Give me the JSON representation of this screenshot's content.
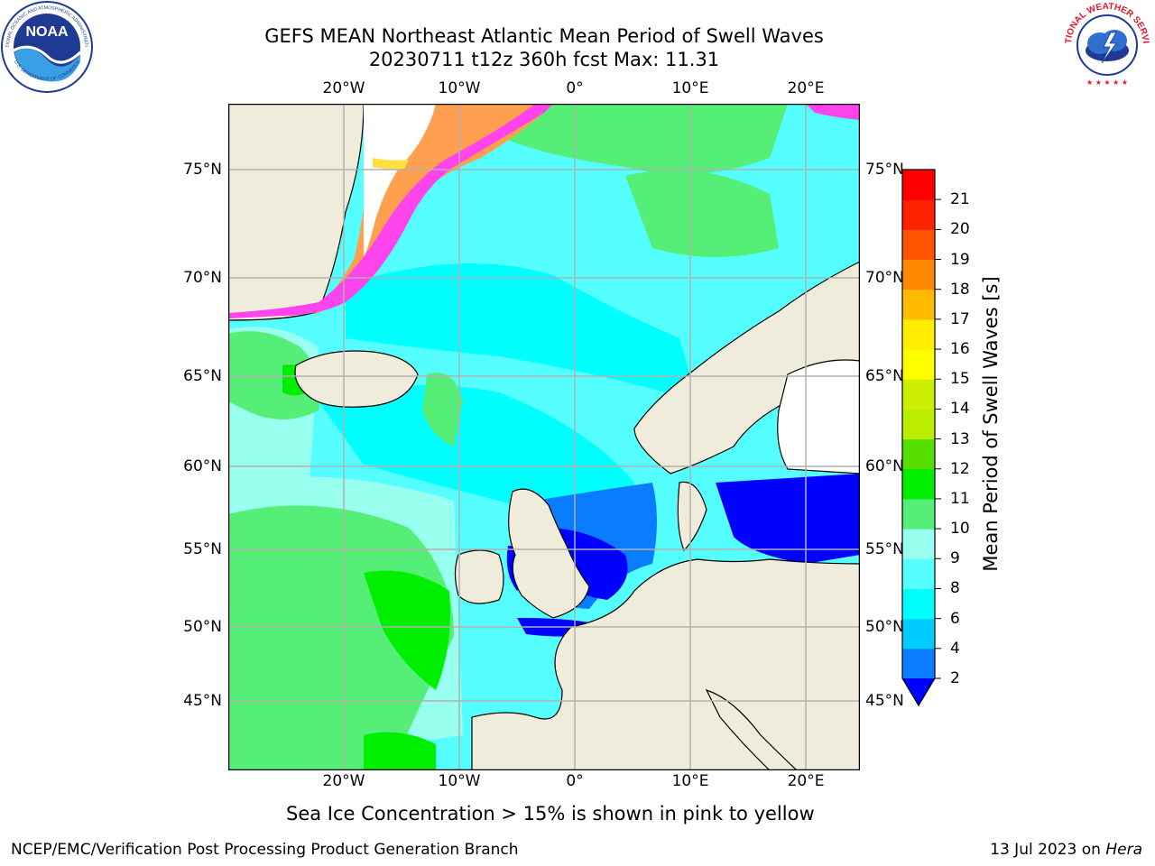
{
  "header": {
    "title_line1": "GEFS MEAN Northeast Atlantic Mean Period of Swell Waves",
    "title_line2": "20230711 t12z 360h fcst   Max: 11.31"
  },
  "logos": {
    "noaa_text": "NOAA",
    "noaa_ring_text": "NATIONAL OCEANIC AND ATMOSPHERIC ADMINISTRATION",
    "noaa_ring_text_bottom": "U.S. DEPARTMENT OF COMMERCE",
    "nws_ring_text": "NATIONAL WEATHER SERVICE"
  },
  "map": {
    "lon_labels": [
      "20°W",
      "10°W",
      "0°",
      "10°E",
      "20°E"
    ],
    "lat_labels": [
      "75°N",
      "70°N",
      "65°N",
      "60°N",
      "55°N",
      "50°N",
      "45°N"
    ],
    "colors": {
      "land": "#efecdc",
      "grid": "#b0b0b0",
      "coast": "#000000",
      "ice_white": "#ffffff",
      "ice_pink": "#ff44ee",
      "ice_orange": "#ffa050",
      "ice_yellow": "#ffe040"
    }
  },
  "colorbar": {
    "label": "Mean Period of Swell Waves [s]",
    "ticks": [
      "2",
      "4",
      "6",
      "8",
      "9",
      "10",
      "11",
      "12",
      "13",
      "14",
      "15",
      "16",
      "17",
      "18",
      "19",
      "20",
      "21"
    ],
    "bins": [
      {
        "from": 2,
        "to": 4,
        "color": "#0a7cff"
      },
      {
        "from": 4,
        "to": 6,
        "color": "#00ccff"
      },
      {
        "from": 6,
        "to": 8,
        "color": "#00ffff"
      },
      {
        "from": 8,
        "to": 9,
        "color": "#55ffff"
      },
      {
        "from": 9,
        "to": 10,
        "color": "#99ffee"
      },
      {
        "from": 10,
        "to": 11,
        "color": "#55ee77"
      },
      {
        "from": 11,
        "to": 12,
        "color": "#00ee00"
      },
      {
        "from": 12,
        "to": 13,
        "color": "#55dd00"
      },
      {
        "from": 13,
        "to": 14,
        "color": "#bbee00"
      },
      {
        "from": 14,
        "to": 15,
        "color": "#ccee00"
      },
      {
        "from": 15,
        "to": 16,
        "color": "#ffff00"
      },
      {
        "from": 16,
        "to": 17,
        "color": "#ffee00"
      },
      {
        "from": 17,
        "to": 18,
        "color": "#ffbb00"
      },
      {
        "from": 18,
        "to": 19,
        "color": "#ff8800"
      },
      {
        "from": 19,
        "to": 20,
        "color": "#ff5500"
      },
      {
        "from": 20,
        "to": 21,
        "color": "#ff2200"
      },
      {
        "from": 21,
        "to": 22,
        "color": "#ff0000"
      }
    ],
    "under_color": "#0000ff"
  },
  "note": "Sea Ice Concentration > 15% is shown in pink to yellow",
  "footer": {
    "left": "NCEP/EMC/Verification Post Processing Product Generation Branch",
    "right_prefix": "13 Jul 2023 on ",
    "right_host": "Hera"
  }
}
